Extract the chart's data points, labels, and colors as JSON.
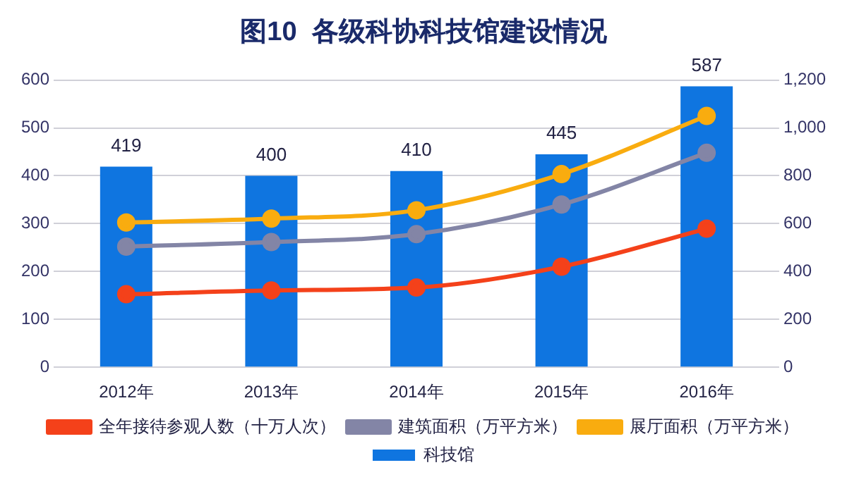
{
  "chart_data": {
    "type": "bar",
    "title": "图10  各级科协科技馆建设情况",
    "categories": [
      "2012年",
      "2013年",
      "2014年",
      "2015年",
      "2016年"
    ],
    "series": [
      {
        "name": "科技馆",
        "color": "#0f75e0",
        "values": [
          419,
          400,
          410,
          445,
          587
        ],
        "value_labels": [
          "419",
          "400",
          "410",
          "445",
          "587"
        ]
      },
      {
        "name": "全年接待参观人数（十万人次）",
        "type": "line",
        "axis": "y2",
        "color": "#f4411a",
        "values": [
          305,
          321,
          333,
          420,
          579
        ]
      },
      {
        "name": "建筑面积（万平方米）",
        "type": "line",
        "axis": "y2",
        "color": "#8385a6",
        "values": [
          504,
          523,
          556,
          680,
          896
        ]
      },
      {
        "name": "展厅面积（万平方米）",
        "type": "line",
        "axis": "y2",
        "color": "#f9ac0f",
        "values": [
          605,
          621,
          656,
          807,
          1050
        ]
      }
    ],
    "ylim": [
      0,
      600
    ],
    "yticks": [
      0,
      100,
      200,
      300,
      400,
      500,
      600
    ],
    "y2lim": [
      0,
      1200
    ],
    "y2ticks": [
      0,
      {
        "value": 200,
        "label": "200"
      },
      {
        "value": 400,
        "label": "400"
      },
      {
        "value": 600,
        "label": "600"
      },
      {
        "value": 800,
        "label": "800"
      },
      {
        "value": 1000,
        "label": "1,000"
      },
      {
        "value": 1200,
        "label": "1,200"
      }
    ],
    "grid": "y",
    "legend": "bottom",
    "marker": "circle"
  }
}
